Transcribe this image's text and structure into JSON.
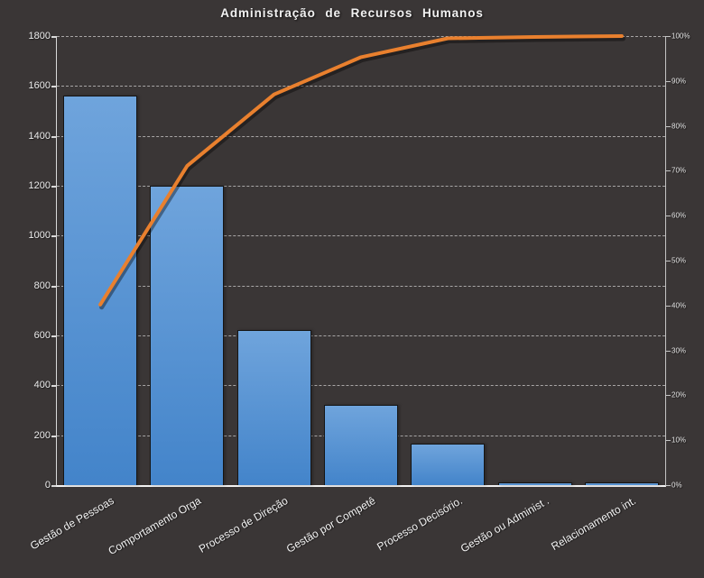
{
  "title": "Administração de Recursos Humanos",
  "chart_data": {
    "type": "bar",
    "subtype": "pareto-combo",
    "title": "Administração de Recursos Humanos",
    "categories": [
      "Gestão de Pessoas",
      "Comportamento Orga",
      "Processo de Direção",
      "Gestão por Competê",
      "Processo Decisório.",
      "Gestão ou Administ .",
      "Relacionamento int."
    ],
    "series": [
      {
        "name": "frequency-bars",
        "type": "bar",
        "axis": "left",
        "values": [
          1560,
          1200,
          620,
          320,
          165,
          10,
          8
        ]
      },
      {
        "name": "cumulative-percent-line",
        "type": "line",
        "axis": "right",
        "values_pct": [
          40.2,
          71.1,
          87.0,
          95.3,
          99.5,
          99.8,
          100
        ]
      }
    ],
    "left_axis": {
      "min": 0,
      "max": 1800,
      "step": 200,
      "tick_labels": [
        "0",
        "200",
        "400",
        "600",
        "800",
        "1000",
        "1200",
        "1400",
        "1600",
        "1800"
      ]
    },
    "right_axis": {
      "min": 0,
      "max": 100,
      "step": 10,
      "suffix": "%",
      "tick_labels": [
        "0%",
        "10%",
        "20%",
        "30%",
        "40%",
        "50%",
        "60%",
        "70%",
        "80%",
        "90%",
        "100%"
      ]
    },
    "grid": {
      "horizontal": true,
      "vertical": false,
      "style": "dashed"
    },
    "legend": "none",
    "colors": {
      "background": "#3A3636",
      "bar_gradient_top": "#6FA4DC",
      "bar_gradient_bottom": "#4384CA",
      "bar_border": "#151515",
      "line": "#E9802E",
      "line_shadow": "rgba(0,0,0,0.38)",
      "grid_line": "rgba(235,235,235,0.62)",
      "axis_text": "#EDEDED",
      "title_text": "#F2F2F2"
    }
  }
}
